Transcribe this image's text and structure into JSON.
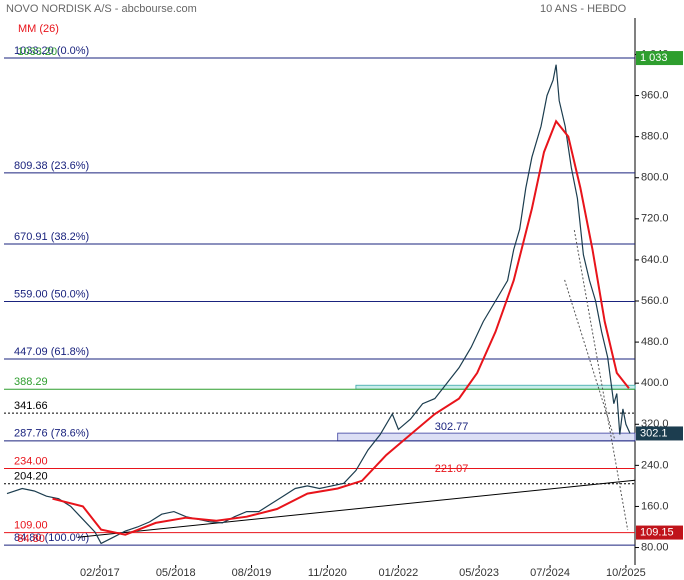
{
  "chart_data": {
    "type": "line",
    "title": "NOVO NORDISK A/S - abcbourse.com",
    "subtitle": "10 ANS - HEBDO",
    "xlim": [
      2015.5,
      2025.9
    ],
    "ylim": [
      46,
      1111
    ],
    "xticks": [
      {
        "value": 2017.08,
        "label": "02/2017"
      },
      {
        "value": 2018.33,
        "label": "05/2018"
      },
      {
        "value": 2019.58,
        "label": "08/2019"
      },
      {
        "value": 2020.83,
        "label": "11/2020"
      },
      {
        "value": 2022.0,
        "label": "01/2022"
      },
      {
        "value": 2023.33,
        "label": "05/2023"
      },
      {
        "value": 2024.5,
        "label": "07/2024"
      },
      {
        "value": 2025.75,
        "label": "10/2025"
      }
    ],
    "yticks": [
      {
        "value": 80,
        "label": "80.00"
      },
      {
        "value": 160,
        "label": "160.0"
      },
      {
        "value": 240,
        "label": "240.0"
      },
      {
        "value": 320,
        "label": "320.0"
      },
      {
        "value": 400,
        "label": "400.0"
      },
      {
        "value": 480,
        "label": "480.0"
      },
      {
        "value": 560,
        "label": "560.0"
      },
      {
        "value": 640,
        "label": "640.0"
      },
      {
        "value": 720,
        "label": "720.0"
      },
      {
        "value": 800,
        "label": "800.0"
      },
      {
        "value": 880,
        "label": "880.0"
      },
      {
        "value": 960,
        "label": "960.0"
      },
      {
        "value": 1040,
        "label": "1 040"
      }
    ],
    "series": [
      {
        "name": "NOVO NORDISK A/S",
        "color": "#1c3d4f",
        "x": [
          2015.55,
          2015.8,
          2016.0,
          2016.2,
          2016.4,
          2016.6,
          2016.8,
          2017.0,
          2017.1,
          2017.3,
          2017.5,
          2017.7,
          2017.9,
          2018.1,
          2018.3,
          2018.5,
          2018.7,
          2018.9,
          2019.1,
          2019.3,
          2019.5,
          2019.7,
          2019.9,
          2020.1,
          2020.3,
          2020.5,
          2020.7,
          2020.9,
          2021.1,
          2021.3,
          2021.5,
          2021.7,
          2021.9,
          2022.0,
          2022.2,
          2022.4,
          2022.6,
          2022.8,
          2023.0,
          2023.2,
          2023.4,
          2023.6,
          2023.8,
          2023.9,
          2024.0,
          2024.1,
          2024.2,
          2024.35,
          2024.45,
          2024.55,
          2024.6,
          2024.65,
          2024.75,
          2024.85,
          2024.95,
          2025.05,
          2025.15,
          2025.25,
          2025.35,
          2025.45,
          2025.55,
          2025.6,
          2025.65,
          2025.7,
          2025.75,
          2025.82
        ],
        "values": [
          185,
          195,
          190,
          180,
          175,
          160,
          135,
          110,
          88,
          100,
          112,
          120,
          130,
          145,
          150,
          140,
          135,
          130,
          128,
          140,
          150,
          150,
          165,
          180,
          195,
          200,
          195,
          200,
          205,
          230,
          270,
          300,
          340,
          310,
          330,
          360,
          370,
          400,
          430,
          470,
          520,
          560,
          600,
          660,
          700,
          780,
          840,
          900,
          960,
          990,
          1020,
          950,
          900,
          820,
          760,
          650,
          600,
          560,
          500,
          450,
          360,
          380,
          300,
          350,
          320,
          302.1
        ]
      },
      {
        "name": "MM (26)",
        "color": "#e8141b",
        "x": [
          2016.3,
          2016.8,
          2017.1,
          2017.5,
          2018.0,
          2018.5,
          2019.0,
          2019.5,
          2020.0,
          2020.5,
          2021.0,
          2021.4,
          2021.8,
          2022.2,
          2022.6,
          2023.0,
          2023.3,
          2023.6,
          2023.9,
          2024.2,
          2024.4,
          2024.6,
          2024.8,
          2025.0,
          2025.2,
          2025.4,
          2025.6,
          2025.8
        ],
        "values": [
          175,
          160,
          115,
          105,
          128,
          138,
          132,
          140,
          155,
          185,
          195,
          210,
          260,
          300,
          340,
          370,
          420,
          500,
          600,
          740,
          850,
          910,
          880,
          780,
          660,
          520,
          420,
          390
        ]
      }
    ],
    "levels": [
      {
        "value": 1033.2,
        "label": "1033.20  (0.0%)",
        "color": "#1a237e",
        "style": "solid"
      },
      {
        "value": 809.38,
        "label": "809.38  (23.6%)",
        "color": "#1a237e",
        "style": "solid"
      },
      {
        "value": 670.91,
        "label": "670.91  (38.2%)",
        "color": "#1a237e",
        "style": "solid"
      },
      {
        "value": 559.0,
        "label": "559.00  (50.0%)",
        "color": "#1a237e",
        "style": "solid"
      },
      {
        "value": 447.09,
        "label": "447.09  (61.8%)",
        "color": "#1a237e",
        "style": "solid"
      },
      {
        "value": 388.29,
        "label": "388.29",
        "color": "#2e9e2e",
        "style": "solid"
      },
      {
        "value": 341.66,
        "label": "341.66",
        "color": "#000000",
        "style": "dotted"
      },
      {
        "value": 287.76,
        "label": "287.76  (78.6%)",
        "color": "#1a237e",
        "style": "solid"
      },
      {
        "value": 234.0,
        "label": "234.00",
        "color": "#e8141b",
        "style": "solid"
      },
      {
        "value": 204.2,
        "label": "204.20",
        "color": "#000000",
        "style": "dotted"
      },
      {
        "value": 109.0,
        "label": "109.00",
        "color": "#e8141b",
        "style": "solid"
      },
      {
        "value": 84.8,
        "label": "84.80  (100.0%)",
        "color": "#1a237e",
        "style": "solid"
      }
    ],
    "zones": [
      {
        "x": 2021.3,
        "values": [
          388.29,
          396
        ],
        "color": "#c9ecec",
        "stroke": "#3aa8a8"
      },
      {
        "x": 2021.0,
        "values": [
          287.76,
          302.77
        ],
        "color": "#dcdff5",
        "stroke": "#3a3f9e"
      }
    ],
    "annotations": [
      {
        "x": 2022.6,
        "value": 302.77,
        "label": "302.77",
        "color": "#1a237e"
      },
      {
        "x": 2022.6,
        "value": 221.07,
        "label": "221.07",
        "color": "#e8141b"
      },
      {
        "x": 2015.72,
        "value": 1033.2,
        "label": "1033.20",
        "color": "#2e9e2e"
      },
      {
        "x": 2015.72,
        "value": 84.8,
        "label": "84.80",
        "color": "#e8141b"
      }
    ],
    "trendlines": [
      {
        "x": [
          2016.72,
          2025.9
        ],
        "values": [
          100,
          211
        ],
        "color": "#000000",
        "style": "solid"
      },
      {
        "x": [
          2024.9,
          2025.78
        ],
        "values": [
          698,
          114
        ],
        "color": "#555555",
        "style": "dotted"
      },
      {
        "x": [
          2024.74,
          2025.57
        ],
        "values": [
          601,
          289
        ],
        "color": "#555555",
        "style": "dotted"
      }
    ],
    "price_tags": [
      {
        "value": 1033,
        "label": "1 033",
        "color": "#2e9e2e"
      },
      {
        "value": 302.1,
        "label": "302.1",
        "color": "#1c3d4f"
      },
      {
        "value": 109.15,
        "label": "109.15",
        "color": "#c0141b"
      }
    ]
  }
}
